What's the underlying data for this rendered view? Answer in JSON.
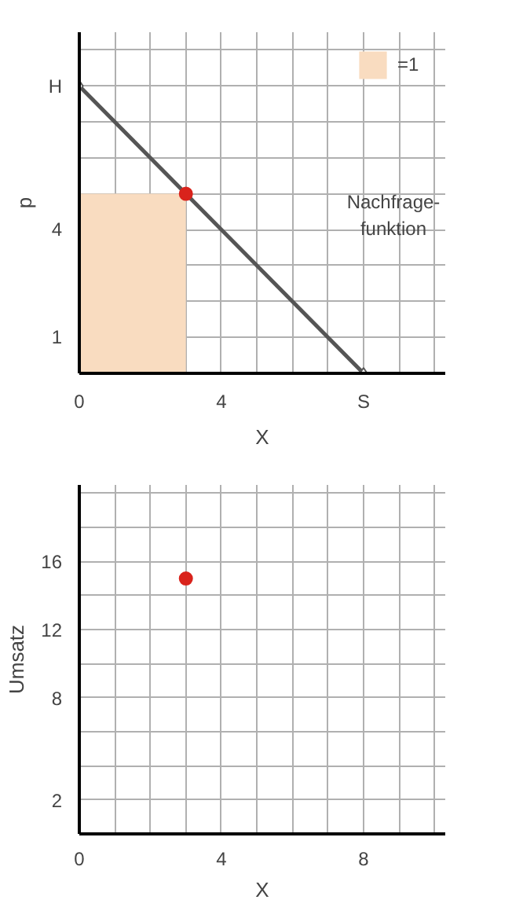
{
  "chart_data": [
    {
      "type": "line",
      "xlabel": "X",
      "ylabel": "p",
      "xlim": [
        0,
        10.3
      ],
      "ylim": [
        0,
        9.5
      ],
      "xticks": [
        {
          "value": 0,
          "label": "0"
        },
        {
          "value": 1,
          "label": null
        },
        {
          "value": 2,
          "label": null
        },
        {
          "value": 3,
          "label": null
        },
        {
          "value": 4,
          "label": "4"
        },
        {
          "value": 5,
          "label": null
        },
        {
          "value": 6,
          "label": null
        },
        {
          "value": 7,
          "label": null
        },
        {
          "value": 8,
          "label": "S"
        },
        {
          "value": 9,
          "label": null
        },
        {
          "value": 10,
          "label": null
        }
      ],
      "yticks": [
        {
          "value": 0,
          "label": null
        },
        1,
        {
          "value": 2,
          "label": null
        },
        {
          "value": 3,
          "label": null
        },
        4,
        {
          "value": 5,
          "label": null
        },
        {
          "value": 6,
          "label": null
        },
        {
          "value": 7,
          "label": null
        },
        {
          "value": 8,
          "label": "H"
        },
        {
          "value": 9,
          "label": null
        }
      ],
      "grid": true,
      "legend": "top right",
      "series": [
        {
          "type": "area",
          "name": "=1",
          "color": "#f9dcc0",
          "x": [
            0,
            3
          ],
          "values": [
            5,
            5
          ]
        },
        {
          "color": "#555555",
          "x": [
            0,
            8
          ],
          "values": [
            8,
            0
          ]
        },
        {
          "type": "scatter",
          "color": "#ffffff",
          "marker": "diamond",
          "x": [
            0,
            8
          ],
          "values": [
            8,
            0
          ]
        },
        {
          "type": "scatter",
          "color": "#d9231c",
          "marker": "circle",
          "x": [
            3
          ],
          "values": [
            5
          ]
        }
      ],
      "annotations": [
        "Nachfrage-\nfunktion"
      ]
    },
    {
      "type": "scatter",
      "xlabel": "X",
      "ylabel": "Umsatz",
      "xlim": [
        0,
        10.3
      ],
      "ylim": [
        0,
        20.5
      ],
      "xticks": [
        {
          "value": 0,
          "label": "0"
        },
        {
          "value": 1,
          "label": null
        },
        {
          "value": 2,
          "label": null
        },
        {
          "value": 3,
          "label": null
        },
        4,
        {
          "value": 5,
          "label": null
        },
        {
          "value": 6,
          "label": null
        },
        {
          "value": 7,
          "label": null
        },
        8,
        {
          "value": 9,
          "label": null
        },
        {
          "value": 10,
          "label": null
        }
      ],
      "yticks": [
        {
          "value": 0,
          "label": null
        },
        2,
        {
          "value": 4,
          "label": null
        },
        {
          "value": 6,
          "label": null
        },
        8,
        {
          "value": 10,
          "label": null
        },
        12,
        {
          "value": 14,
          "label": null
        },
        16,
        {
          "value": 18,
          "label": null
        },
        {
          "value": 20,
          "label": null
        }
      ],
      "grid": true,
      "series": [
        {
          "color": "#d9231c",
          "marker": "circle",
          "x": [
            3
          ],
          "values": [
            15
          ]
        }
      ]
    }
  ]
}
